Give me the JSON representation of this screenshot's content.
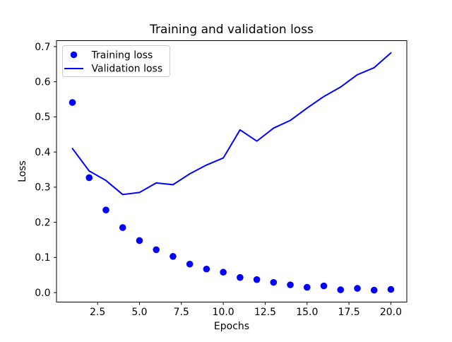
{
  "figure": {
    "title": "Training and validation loss",
    "xlabel": "Epochs",
    "ylabel": "Loss"
  },
  "chart_data": {
    "type": "line",
    "title": "Training and validation loss",
    "xlabel": "Epochs",
    "ylabel": "Loss",
    "x": [
      1,
      2,
      3,
      4,
      5,
      6,
      7,
      8,
      9,
      10,
      11,
      12,
      13,
      14,
      15,
      16,
      17,
      18,
      19,
      20
    ],
    "series": [
      {
        "name": "Training loss",
        "style": "scatter",
        "marker": "circle",
        "color": "#0000ff",
        "values": [
          0.541,
          0.327,
          0.235,
          0.185,
          0.148,
          0.122,
          0.103,
          0.081,
          0.067,
          0.058,
          0.043,
          0.037,
          0.029,
          0.022,
          0.015,
          0.019,
          0.008,
          0.012,
          0.007,
          0.009
        ]
      },
      {
        "name": "Validation loss",
        "style": "line",
        "color": "#0000ff",
        "values": [
          0.41,
          0.346,
          0.319,
          0.279,
          0.285,
          0.312,
          0.307,
          0.338,
          0.363,
          0.383,
          0.463,
          0.431,
          0.468,
          0.49,
          0.525,
          0.558,
          0.585,
          0.62,
          0.64,
          0.682
        ]
      }
    ],
    "xlim": [
      0.05,
      20.95
    ],
    "ylim": [
      -0.027,
      0.717
    ],
    "xticks": [
      2.5,
      5.0,
      7.5,
      10.0,
      12.5,
      15.0,
      17.5,
      20.0
    ],
    "yticks": [
      0.0,
      0.1,
      0.2,
      0.3,
      0.4,
      0.5,
      0.6,
      0.7
    ],
    "grid": false,
    "legend_position": "upper left",
    "background_color": "#ffffff",
    "text_color": "#000000",
    "accent_color": "#0000ff",
    "axes_edge_color": "#000000",
    "legend_border_color": "#cccccc"
  }
}
